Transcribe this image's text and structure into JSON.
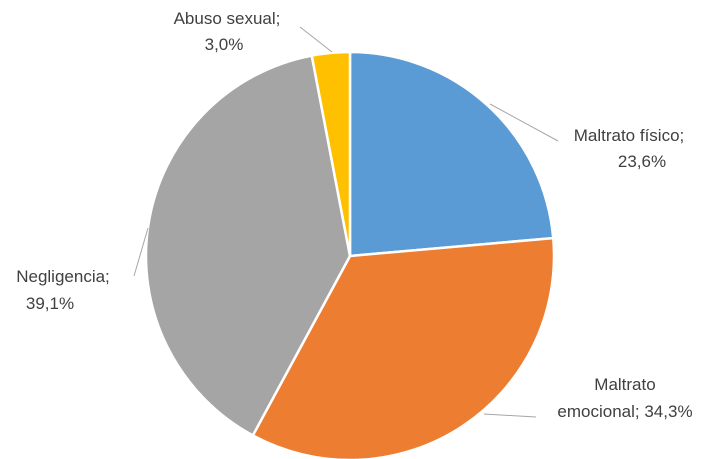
{
  "chart_data": {
    "type": "pie",
    "title": "",
    "start_angle_deg": 0,
    "direction": "clockwise",
    "legend": "none",
    "slices": [
      {
        "label": "Maltrato  físico",
        "value": 23.6,
        "display": "23,6%",
        "color": "#5b9bd5",
        "text_lines": [
          "Maltrato  físico;",
          "23,6%"
        ]
      },
      {
        "label": "Maltrato emocional",
        "value": 34.3,
        "display": "34,3%",
        "color": "#ed7d31",
        "text_lines": [
          "Maltrato",
          "emocional; 34,3%"
        ]
      },
      {
        "label": "Negligencia",
        "value": 39.1,
        "display": "39,1%",
        "color": "#a5a5a5",
        "text_lines": [
          "Negligencia;",
          "39,1%"
        ]
      },
      {
        "label": "Abuso sexual",
        "value": 3.0,
        "display": "3,0%",
        "color": "#ffc000",
        "text_lines": [
          "Abuso sexual;",
          "3,0%"
        ]
      }
    ]
  }
}
